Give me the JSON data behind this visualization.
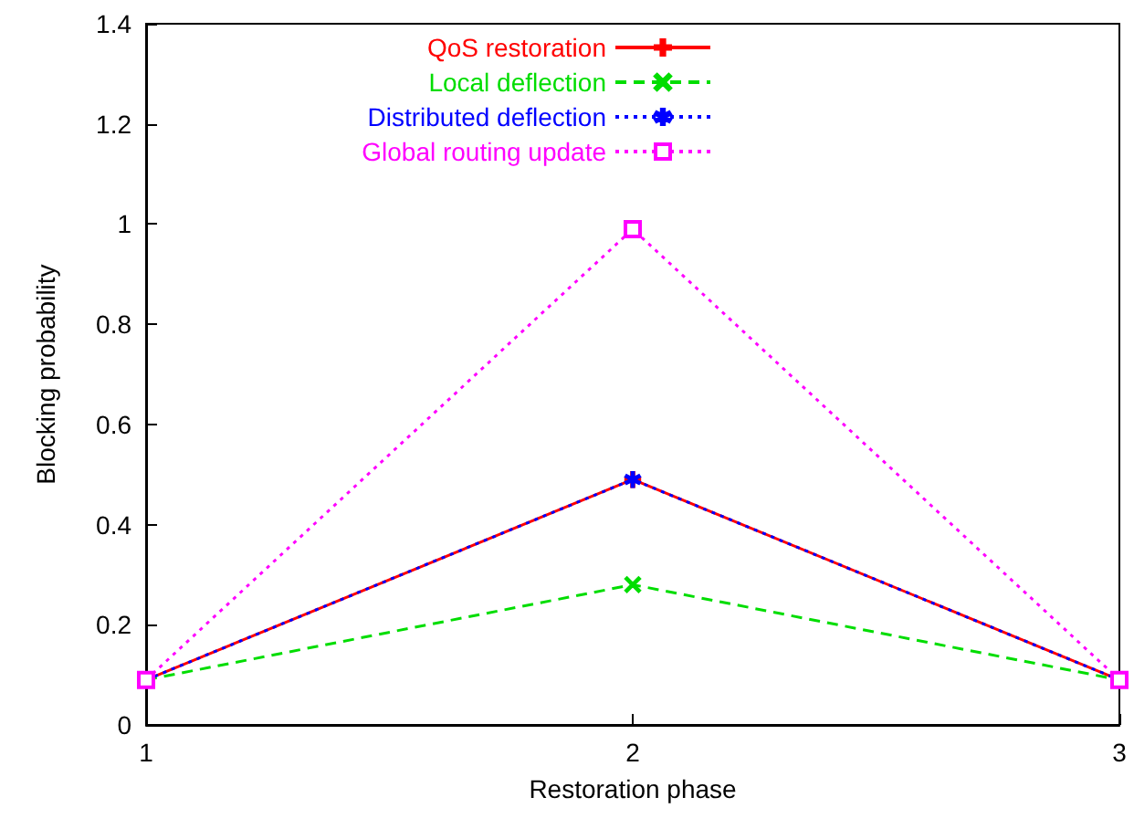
{
  "chart_data": {
    "type": "line",
    "xlabel": "Restoration phase",
    "ylabel": "Blocking probability",
    "x": [
      1,
      2,
      3
    ],
    "xlim": [
      1,
      3
    ],
    "xticks": [
      1,
      2,
      3
    ],
    "ylim": [
      0,
      1.4
    ],
    "yticks": [
      0,
      0.2,
      0.4,
      0.6,
      0.8,
      1,
      1.2,
      1.4
    ],
    "legend": "top",
    "grid": false,
    "series": [
      {
        "name": "QoS restoration",
        "color": "#ff0000",
        "values": [
          0.09,
          0.49,
          0.09
        ],
        "marker": "plus",
        "line_style": "solid"
      },
      {
        "name": "Local deflection",
        "color": "#00dd00",
        "values": [
          0.09,
          0.28,
          0.09
        ],
        "marker": "cross",
        "line_style": "dashed"
      },
      {
        "name": "Distributed deflection",
        "color": "#0000ff",
        "values": [
          0.09,
          0.49,
          0.09
        ],
        "marker": "star",
        "line_style": "dotted"
      },
      {
        "name": "Global routing update",
        "color": "#ff00ff",
        "values": [
          0.09,
          0.99,
          0.09
        ],
        "marker": "square",
        "line_style": "dotted"
      }
    ]
  }
}
